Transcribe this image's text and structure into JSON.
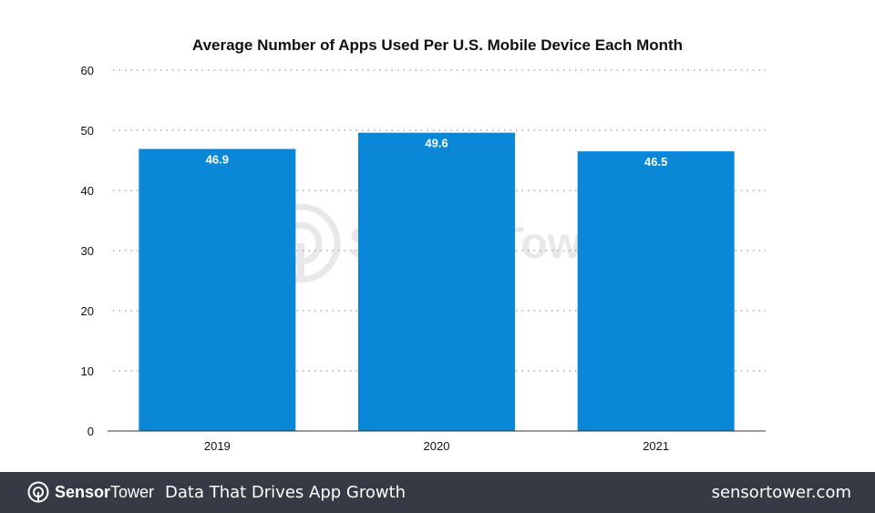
{
  "chart_data": {
    "type": "bar",
    "title": "Average Number of Apps Used Per U.S. Mobile Device Each Month",
    "categories": [
      "2019",
      "2020",
      "2021"
    ],
    "values": [
      46.9,
      49.6,
      46.5
    ],
    "data_labels": [
      "46.9",
      "49.6",
      "46.5"
    ],
    "ylim": [
      0,
      60
    ],
    "yticks": [
      "0",
      "10",
      "20",
      "30",
      "40",
      "50",
      "60"
    ],
    "grid": true,
    "bar_color": "#0a87d6",
    "watermark": "SensorTower"
  },
  "footer": {
    "brand_bold": "Sensor",
    "brand_light": "Tower",
    "tagline": "Data That Drives App Growth",
    "url": "sensortower.com",
    "background": "#363a45"
  }
}
